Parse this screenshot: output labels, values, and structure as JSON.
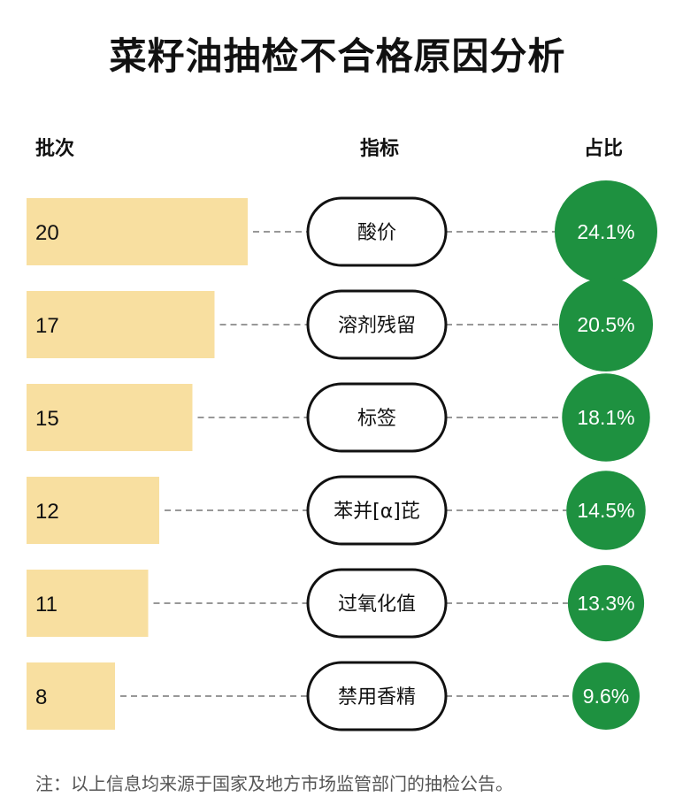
{
  "title": "菜籽油抽检不合格原因分析",
  "headers": {
    "batches": "批次",
    "indicator": "指标",
    "share": "占比"
  },
  "note": "注：以上信息均来源于国家及地方市场监管部门的抽检公告。",
  "colors": {
    "bar": "#f8dfa0",
    "circle": "#1e9140",
    "pill_border": "#111111",
    "dash": "#777777"
  },
  "chart_data": {
    "type": "bar",
    "orientation": "horizontal",
    "title": "菜籽油抽检不合格原因分析",
    "categories": [
      "酸价",
      "溶剂残留",
      "标签",
      "苯并[α]芘",
      "过氧化值",
      "禁用香精"
    ],
    "series": [
      {
        "name": "批次",
        "values": [
          20,
          17,
          15,
          12,
          11,
          8
        ]
      },
      {
        "name": "占比",
        "values": [
          "24.1%",
          "20.5%",
          "18.1%",
          "14.5%",
          "13.3%",
          "9.6%"
        ]
      }
    ]
  }
}
